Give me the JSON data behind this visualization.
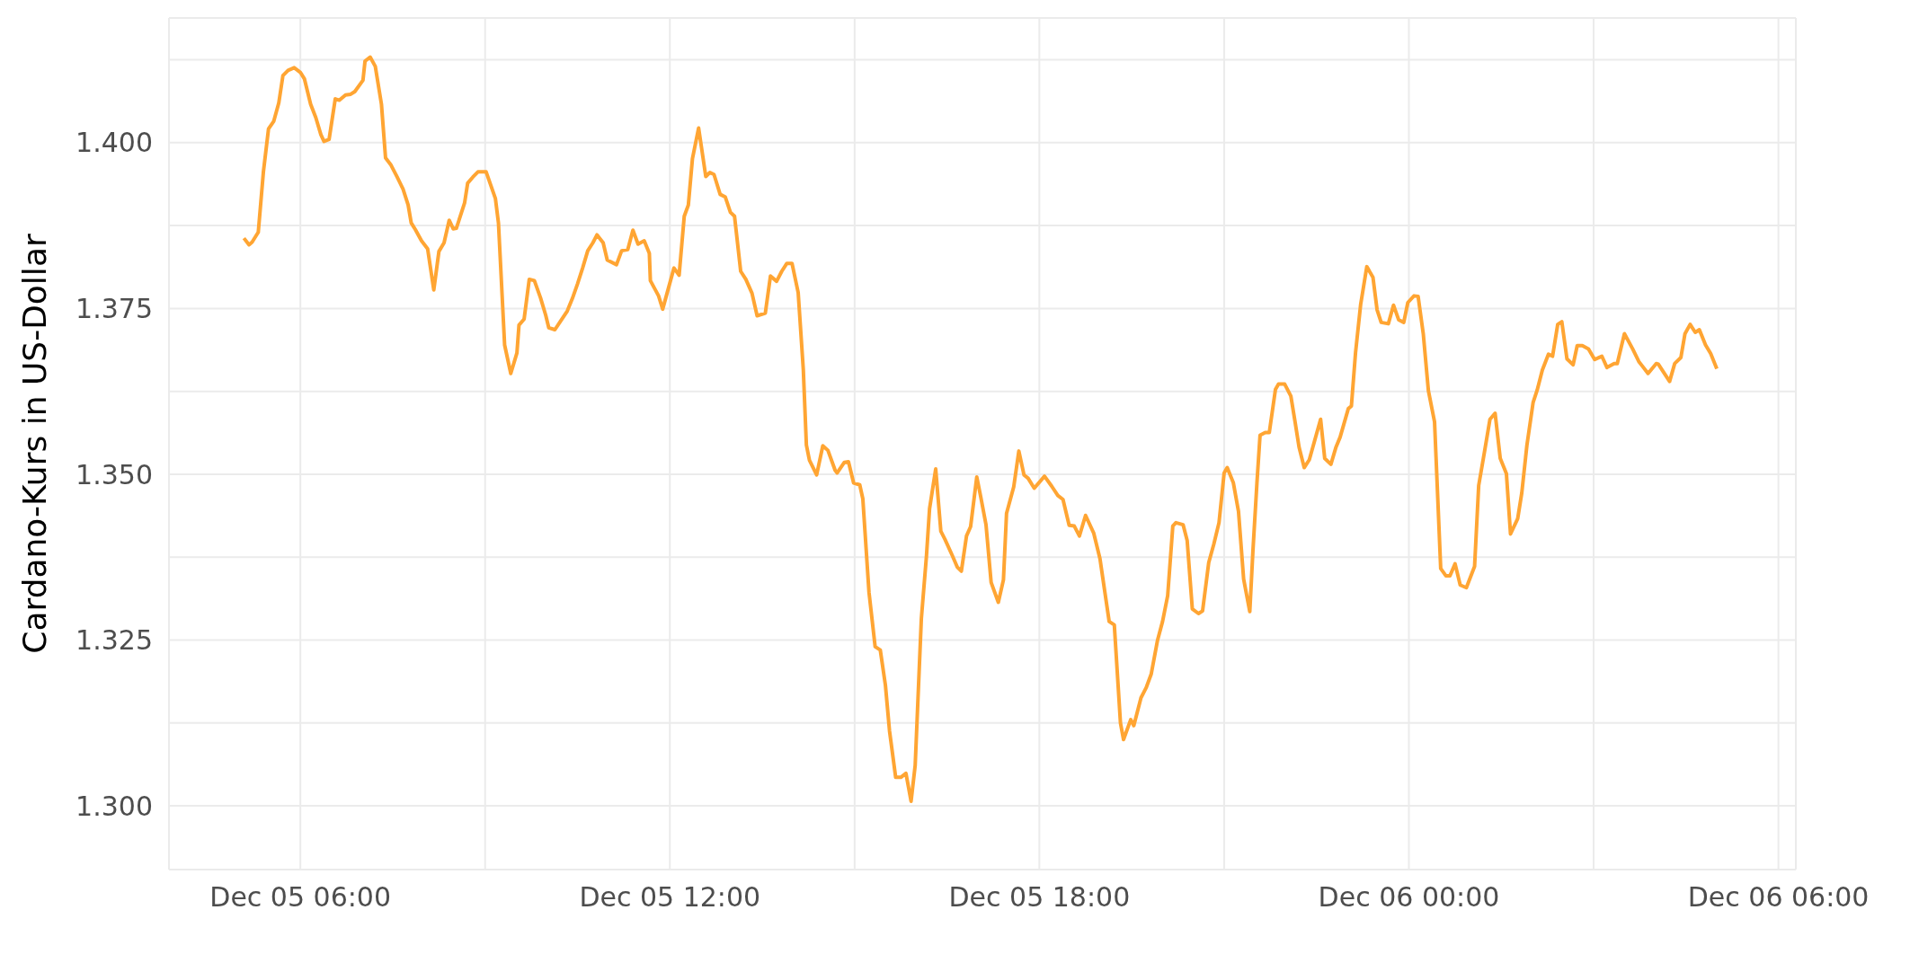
{
  "chart_data": {
    "type": "line",
    "ylabel": "Cardano-Kurs in US-Dollar",
    "x": [
      "--12-05T05:05",
      "--12-05T05:10",
      "--12-05T05:13",
      "--12-05T05:19",
      "--12-05T05:24",
      "--12-05T05:29",
      "--12-05T05:34",
      "--12-05T05:39",
      "--12-05T05:43",
      "--12-05T05:48",
      "--12-05T05:54",
      "--12-05T06:00",
      "--12-05T06:04",
      "--12-05T06:10",
      "--12-05T06:15",
      "--12-05T06:20",
      "--12-05T06:23",
      "--12-05T06:28",
      "--12-05T06:34",
      "--12-05T06:38",
      "--12-05T06:44",
      "--12-05T06:49",
      "--12-05T06:53",
      "--12-05T07:01",
      "--12-05T07:03",
      "--12-05T07:08",
      "--12-05T07:13",
      "--12-05T07:19",
      "--12-05T07:23",
      "--12-05T07:28",
      "--12-05T07:34",
      "--12-05T07:40",
      "--12-05T07:45",
      "--12-05T07:48",
      "--12-05T07:52",
      "--12-05T07:58",
      "--12-05T08:04",
      "--12-05T08:10",
      "--12-05T08:15",
      "--12-05T08:20",
      "--12-05T08:25",
      "--12-05T08:29",
      "--12-05T08:32",
      "--12-05T08:40",
      "--12-05T08:43",
      "--12-05T08:48",
      "--12-05T08:53",
      "--12-05T09:01",
      "--12-05T09:10",
      "--12-05T09:13",
      "--12-05T09:19",
      "--12-05T09:25",
      "--12-05T09:31",
      "--12-05T09:33",
      "--12-05T09:38",
      "--12-05T09:43",
      "--12-05T09:48",
      "--12-05T09:54",
      "--12-05T09:59",
      "--12-05T10:02",
      "--12-05T10:08",
      "--12-05T10:14",
      "--12-05T10:20",
      "--12-05T10:25",
      "--12-05T10:30",
      "--12-05T10:35",
      "--12-05T10:40",
      "--12-05T10:45",
      "--12-05T10:49",
      "--12-05T10:55",
      "--12-05T10:59",
      "--12-05T11:08",
      "--12-05T11:13",
      "--12-05T11:19",
      "--12-05T11:24",
      "--12-05T11:29",
      "--12-05T11:35",
      "--12-05T11:40",
      "--12-05T11:41",
      "--12-05T11:49",
      "--12-05T11:53",
      "--12-05T12:04",
      "--12-05T12:09",
      "--12-05T12:14",
      "--12-05T12:18",
      "--12-05T12:22",
      "--12-05T12:28",
      "--12-05T12:35",
      "--12-05T12:39",
      "--12-05T12:43",
      "--12-05T12:49",
      "--12-05T12:54",
      "--12-05T12:59",
      "--12-05T13:03",
      "--12-05T13:09",
      "--12-05T13:14",
      "--12-05T13:20",
      "--12-05T13:25",
      "--12-05T13:33",
      "--12-05T13:38",
      "--12-05T13:44",
      "--12-05T13:49",
      "--12-05T13:54",
      "--12-05T13:59",
      "--12-05T14:05",
      "--12-05T14:10",
      "--12-05T14:13",
      "--12-05T14:16",
      "--12-05T14:23",
      "--12-05T14:29",
      "--12-05T14:34",
      "--12-05T14:41",
      "--12-05T14:43",
      "--12-05T14:50",
      "--12-05T14:54",
      "--12-05T14:59",
      "--12-05T15:05",
      "--12-05T15:08",
      "--12-05T15:14",
      "--12-05T15:20",
      "--12-05T15:25",
      "--12-05T15:30",
      "--12-05T15:34",
      "--12-05T15:40",
      "--12-05T15:45",
      "--12-05T15:50",
      "--12-05T15:55",
      "--12-05T15:59",
      "--12-05T16:05",
      "--12-05T16:10",
      "--12-05T16:13",
      "--12-05T16:19",
      "--12-05T16:24",
      "--12-05T16:28",
      "--12-05T16:35",
      "--12-05T16:40",
      "--12-05T16:44",
      "--12-05T16:49",
      "--12-05T16:53",
      "--12-05T16:59",
      "--12-05T17:03",
      "--12-05T17:08",
      "--12-05T17:13",
      "--12-05T17:20",
      "--12-05T17:25",
      "--12-05T17:28",
      "--12-05T17:35",
      "--12-05T17:40",
      "--12-05T17:45",
      "--12-05T17:49",
      "--12-05T17:55",
      "--12-05T18:05",
      "--12-05T18:12",
      "--12-05T18:18",
      "--12-05T18:23",
      "--12-05T18:29",
      "--12-05T18:34",
      "--12-05T18:39",
      "--12-05T18:45",
      "--12-05T18:53",
      "--12-05T18:59",
      "--12-05T19:08",
      "--12-05T19:13",
      "--12-05T19:19",
      "--12-05T19:22",
      "--12-05T19:29",
      "--12-05T19:32",
      "--12-05T19:39",
      "--12-05T19:44",
      "--12-05T19:49",
      "--12-05T19:55",
      "--12-05T20:00",
      "--12-05T20:05",
      "--12-05T20:10",
      "--12-05T20:13",
      "--12-05T20:20",
      "--12-05T20:24",
      "--12-05T20:29",
      "--12-05T20:35",
      "--12-05T20:39",
      "--12-05T20:45",
      "--12-05T20:50",
      "--12-05T20:55",
      "--12-05T21:00",
      "--12-05T21:03",
      "--12-05T21:09",
      "--12-05T21:14",
      "--12-05T21:19",
      "--12-05T21:25",
      "--12-05T21:28",
      "--12-05T21:32",
      "--12-05T21:35",
      "--12-05T21:40",
      "--12-05T21:44",
      "--12-05T21:50",
      "--12-05T21:53",
      "--12-05T21:59",
      "--12-05T22:05",
      "--12-05T22:09",
      "--12-05T22:13",
      "--12-05T22:18",
      "--12-05T22:23",
      "--12-05T22:34",
      "--12-05T22:38",
      "--12-05T22:44",
      "--12-05T22:49",
      "--12-05T22:53",
      "--12-05T23:01",
      "--12-05T23:04",
      "--12-05T23:08",
      "--12-05T23:13",
      "--12-05T23:19",
      "--12-05T23:25",
      "--12-05T23:29",
      "--12-05T23:33",
      "--12-05T23:40",
      "--12-05T23:45",
      "--12-05T23:50",
      "--12-05T23:55",
      "--12-05T23:59",
      "--12-06T00:05",
      "--12-06T00:09",
      "--12-06T00:14",
      "--12-06T00:19",
      "--12-06T00:25",
      "--12-06T00:31",
      "--12-06T00:36",
      "--12-06T00:40",
      "--12-06T00:45",
      "--12-06T00:50",
      "--12-06T00:56",
      "--12-06T01:04",
      "--12-06T01:08",
      "--12-06T01:14",
      "--12-06T01:19",
      "--12-06T01:24",
      "--12-06T01:29",
      "--12-06T01:35",
      "--12-06T01:39",
      "--12-06T01:46",
      "--12-06T01:50",
      "--12-06T01:55",
      "--12-06T02:01",
      "--12-06T02:05",
      "--12-06T02:10",
      "--12-06T02:16",
      "--12-06T02:20",
      "--12-06T02:25",
      "--12-06T02:29",
      "--12-06T02:34",
      "--12-06T02:40",
      "--12-06T02:44",
      "--12-06T02:49",
      "--12-06T02:55",
      "--12-06T03:01",
      "--12-06T03:08",
      "--12-06T03:13",
      "--12-06T03:20",
      "--12-06T03:23",
      "--12-06T03:30",
      "--12-06T03:38",
      "--12-06T03:44",
      "--12-06T03:47",
      "--12-06T03:53",
      "--12-06T04:01",
      "--12-06T04:03",
      "--12-06T04:14",
      "--12-06T04:19",
      "--12-06T04:25",
      "--12-06T04:29",
      "--12-06T04:34",
      "--12-06T04:39",
      "--12-06T04:43",
      "--12-06T04:49",
      "--12-06T04:54",
      "--12-06T05:00"
    ],
    "values": [
      1.3856,
      1.3846,
      1.385,
      1.3865,
      1.3956,
      1.4021,
      1.4032,
      1.406,
      1.4101,
      1.4109,
      1.4113,
      1.4106,
      1.4096,
      1.4058,
      1.4038,
      1.4012,
      1.4002,
      1.4005,
      1.4066,
      1.4064,
      1.4072,
      1.4073,
      1.4077,
      1.4094,
      1.4123,
      1.4129,
      1.4115,
      1.4058,
      1.3977,
      1.3967,
      1.3949,
      1.393,
      1.3906,
      1.3879,
      1.3869,
      1.3852,
      1.384,
      1.3778,
      1.3836,
      1.3849,
      1.3883,
      1.387,
      1.3871,
      1.3909,
      1.3939,
      1.3948,
      1.3956,
      1.3956,
      1.3916,
      1.3879,
      1.3695,
      1.3652,
      1.3683,
      1.3725,
      1.3734,
      1.3794,
      1.3792,
      1.3766,
      1.374,
      1.3721,
      1.3718,
      1.3732,
      1.3746,
      1.3765,
      1.3787,
      1.3811,
      1.3837,
      1.3849,
      1.3861,
      1.3849,
      1.3823,
      1.3816,
      1.3837,
      1.3839,
      1.3868,
      1.3847,
      1.3852,
      1.3833,
      1.3792,
      1.3769,
      1.3749,
      1.3811,
      1.38,
      1.3889,
      1.3906,
      1.3976,
      1.4022,
      1.3949,
      1.3955,
      1.3952,
      1.3922,
      1.3918,
      1.3895,
      1.3889,
      1.3806,
      1.3794,
      1.3773,
      1.3739,
      1.3743,
      1.3799,
      1.3791,
      1.3806,
      1.3818,
      1.3818,
      1.3774,
      1.3658,
      1.3544,
      1.3521,
      1.3499,
      1.3543,
      1.3536,
      1.3506,
      1.3502,
      1.3518,
      1.3519,
      1.3487,
      1.3484,
      1.3463,
      1.3322,
      1.324,
      1.3235,
      1.3182,
      1.3113,
      1.3043,
      1.3043,
      1.3049,
      1.3007,
      1.3061,
      1.3282,
      1.3377,
      1.3448,
      1.3508,
      1.3414,
      1.3402,
      1.3378,
      1.336,
      1.3354,
      1.3407,
      1.3421,
      1.3496,
      1.3465,
      1.3424,
      1.3337,
      1.3307,
      1.3341,
      1.3441,
      1.3481,
      1.3535,
      1.3499,
      1.3494,
      1.3479,
      1.3497,
      1.3482,
      1.3468,
      1.3462,
      1.3423,
      1.3422,
      1.3407,
      1.3438,
      1.3411,
      1.3373,
      1.3278,
      1.3273,
      1.3125,
      1.31,
      1.313,
      1.3121,
      1.3163,
      1.3178,
      1.3199,
      1.3249,
      1.3278,
      1.3317,
      1.3422,
      1.3427,
      1.3424,
      1.34,
      1.3297,
      1.329,
      1.3294,
      1.3367,
      1.3395,
      1.3427,
      1.3502,
      1.351,
      1.3487,
      1.3444,
      1.3342,
      1.3293,
      1.3383,
      1.3488,
      1.3559,
      1.3563,
      1.3563,
      1.3628,
      1.3636,
      1.3636,
      1.3618,
      1.358,
      1.3541,
      1.351,
      1.3522,
      1.3583,
      1.3524,
      1.3515,
      1.3541,
      1.3556,
      1.3599,
      1.3603,
      1.3683,
      1.3756,
      1.3813,
      1.3797,
      1.3748,
      1.3729,
      1.3727,
      1.3755,
      1.3733,
      1.3729,
      1.3759,
      1.3769,
      1.3768,
      1.3712,
      1.3626,
      1.3579,
      1.3358,
      1.3347,
      1.3347,
      1.3365,
      1.3333,
      1.3329,
      1.3361,
      1.3483,
      1.3537,
      1.3583,
      1.3592,
      1.3524,
      1.3501,
      1.341,
      1.3433,
      1.3472,
      1.3544,
      1.3608,
      1.3627,
      1.3657,
      1.3681,
      1.3678,
      1.3726,
      1.373,
      1.3674,
      1.3665,
      1.3694,
      1.3694,
      1.3689,
      1.3673,
      1.3678,
      1.3661,
      1.3667,
      1.3667,
      1.3712,
      1.3689,
      1.367,
      1.3664,
      1.3652,
      1.3667,
      1.3666,
      1.364,
      1.3667,
      1.3676,
      1.3712,
      1.3726,
      1.3714,
      1.3718,
      1.3695,
      1.3682,
      1.3659
    ],
    "color": "#ffa533",
    "xlim": [
      "--12-05T03:52",
      "--12-06T06:17"
    ],
    "xticks": [
      {
        "value": "--12-05T06:00",
        "label": "Dec 05 06:00"
      },
      {
        "value": "--12-05T09:00",
        "label": null
      },
      {
        "value": "--12-05T12:00",
        "label": "Dec 05 12:00"
      },
      {
        "value": "--12-05T15:00",
        "label": null
      },
      {
        "value": "--12-05T18:00",
        "label": "Dec 05 18:00"
      },
      {
        "value": "--12-05T21:00",
        "label": null
      },
      {
        "value": "--12-06T00:00",
        "label": "Dec 06 00:00"
      },
      {
        "value": "--12-06T03:00",
        "label": null
      },
      {
        "value": "--12-06T06:00",
        "label": "Dec 06 06:00"
      }
    ],
    "ylim": [
      1.2904,
      1.4188
    ],
    "yticks": [
      {
        "value": 1.3,
        "label": "1.300"
      },
      {
        "value": 1.3125,
        "label": null
      },
      {
        "value": 1.325,
        "label": "1.325"
      },
      {
        "value": 1.3375,
        "label": null
      },
      {
        "value": 1.35,
        "label": "1.350"
      },
      {
        "value": 1.3625,
        "label": null
      },
      {
        "value": 1.375,
        "label": "1.375"
      },
      {
        "value": 1.3875,
        "label": null
      },
      {
        "value": 1.4,
        "label": "1.400"
      },
      {
        "value": 1.4125,
        "label": null
      }
    ],
    "grid": true
  }
}
